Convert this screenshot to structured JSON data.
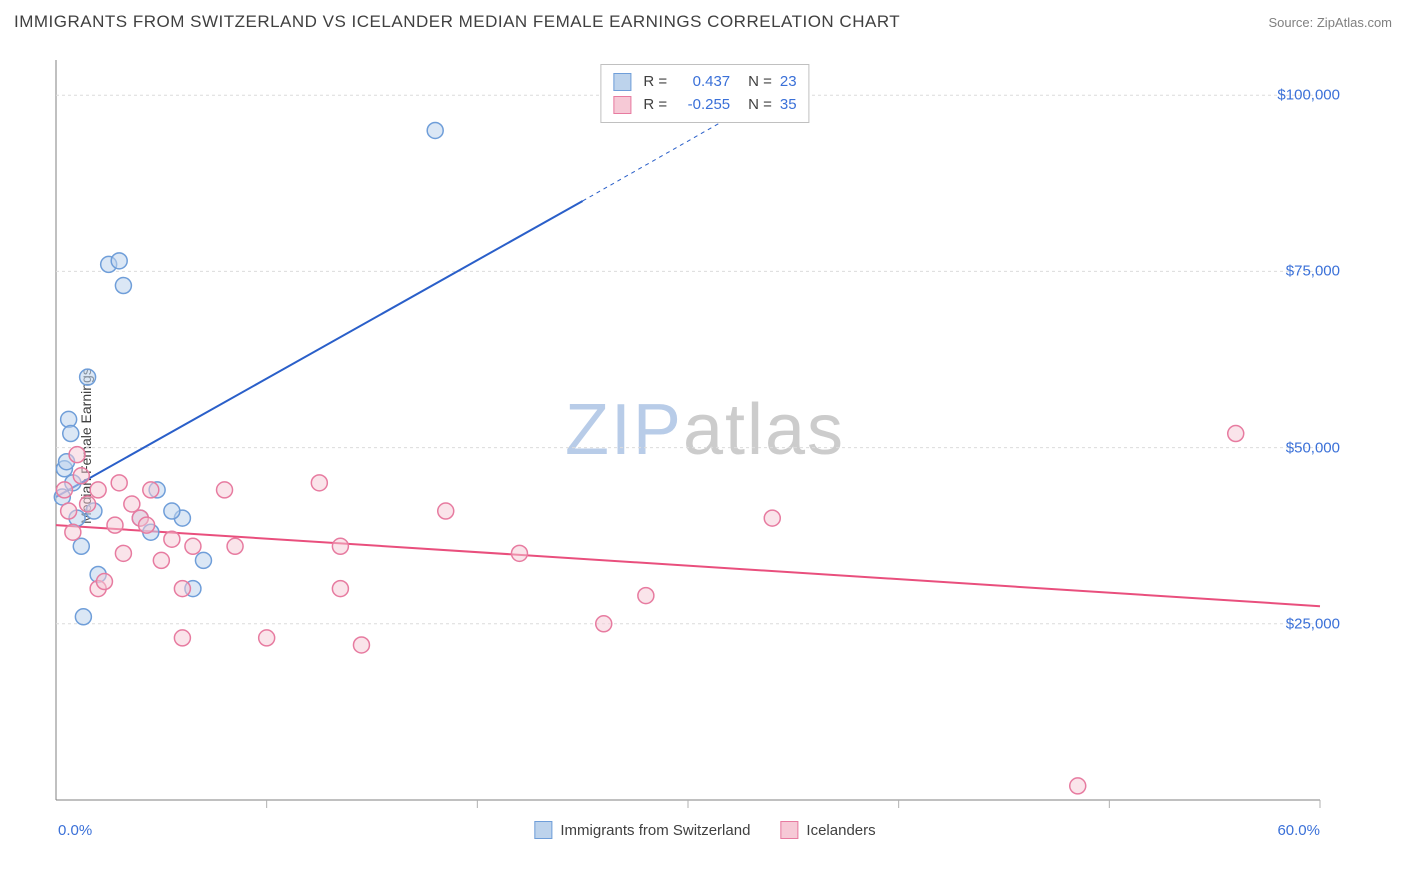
{
  "title": "IMMIGRANTS FROM SWITZERLAND VS ICELANDER MEDIAN FEMALE EARNINGS CORRELATION CHART",
  "source": "Source: ZipAtlas.com",
  "y_axis_label": "Median Female Earnings",
  "watermark": {
    "part1": "ZIP",
    "part2": "atlas"
  },
  "chart": {
    "type": "scatter",
    "xlim": [
      0,
      60
    ],
    "ylim": [
      0,
      105000
    ],
    "x_tick_positions": [
      10,
      20,
      30,
      40,
      50,
      60
    ],
    "y_grid": [
      25000,
      50000,
      75000,
      100000
    ],
    "y_tick_labels": [
      "$25,000",
      "$50,000",
      "$75,000",
      "$100,000"
    ],
    "x_min_label": "0.0%",
    "x_max_label": "60.0%",
    "background_color": "#ffffff",
    "axis_color": "#808080",
    "grid_color": "#dcdcdc",
    "tick_color": "#b0b0b0",
    "marker_radius": 8,
    "marker_stroke_width": 1.5,
    "trend_line_width": 2,
    "series": [
      {
        "name": "Immigrants from Switzerland",
        "fill": "#bdd3ec",
        "stroke": "#6f9ed9",
        "fill_opacity": 0.55,
        "R": "0.437",
        "N": "23",
        "trend": {
          "x1": 0,
          "y1": 43000,
          "x2_solid": 25,
          "y2_solid": 85000,
          "x2": 35,
          "y2": 102000,
          "color": "#2a5fc9"
        },
        "points": [
          {
            "x": 0.3,
            "y": 43000
          },
          {
            "x": 0.4,
            "y": 47000
          },
          {
            "x": 0.5,
            "y": 48000
          },
          {
            "x": 0.6,
            "y": 54000
          },
          {
            "x": 0.7,
            "y": 52000
          },
          {
            "x": 0.8,
            "y": 45000
          },
          {
            "x": 1.0,
            "y": 40000
          },
          {
            "x": 1.2,
            "y": 36000
          },
          {
            "x": 1.3,
            "y": 26000
          },
          {
            "x": 1.8,
            "y": 41000
          },
          {
            "x": 2.0,
            "y": 32000
          },
          {
            "x": 1.5,
            "y": 60000
          },
          {
            "x": 2.5,
            "y": 76000
          },
          {
            "x": 3.0,
            "y": 76500
          },
          {
            "x": 3.2,
            "y": 73000
          },
          {
            "x": 4.0,
            "y": 40000
          },
          {
            "x": 4.5,
            "y": 38000
          },
          {
            "x": 4.8,
            "y": 44000
          },
          {
            "x": 6.5,
            "y": 30000
          },
          {
            "x": 6.0,
            "y": 40000
          },
          {
            "x": 5.5,
            "y": 41000
          },
          {
            "x": 7.0,
            "y": 34000
          },
          {
            "x": 18.0,
            "y": 95000
          }
        ]
      },
      {
        "name": "Icelanders",
        "fill": "#f6c9d6",
        "stroke": "#e77ba0",
        "fill_opacity": 0.5,
        "R": "-0.255",
        "N": "35",
        "trend": {
          "x1": 0,
          "y1": 39000,
          "x2_solid": 60,
          "y2_solid": 27500,
          "x2": 60,
          "y2": 27500,
          "color": "#e94f7d"
        },
        "points": [
          {
            "x": 0.4,
            "y": 44000
          },
          {
            "x": 0.6,
            "y": 41000
          },
          {
            "x": 0.8,
            "y": 38000
          },
          {
            "x": 1.0,
            "y": 49000
          },
          {
            "x": 1.2,
            "y": 46000
          },
          {
            "x": 1.5,
            "y": 42000
          },
          {
            "x": 2.0,
            "y": 44000
          },
          {
            "x": 2.0,
            "y": 30000
          },
          {
            "x": 2.3,
            "y": 31000
          },
          {
            "x": 2.8,
            "y": 39000
          },
          {
            "x": 3.0,
            "y": 45000
          },
          {
            "x": 3.2,
            "y": 35000
          },
          {
            "x": 3.6,
            "y": 42000
          },
          {
            "x": 4.0,
            "y": 40000
          },
          {
            "x": 4.3,
            "y": 39000
          },
          {
            "x": 4.5,
            "y": 44000
          },
          {
            "x": 5.0,
            "y": 34000
          },
          {
            "x": 5.5,
            "y": 37000
          },
          {
            "x": 6.0,
            "y": 30000
          },
          {
            "x": 6.0,
            "y": 23000
          },
          {
            "x": 6.5,
            "y": 36000
          },
          {
            "x": 8.0,
            "y": 44000
          },
          {
            "x": 8.5,
            "y": 36000
          },
          {
            "x": 10.0,
            "y": 23000
          },
          {
            "x": 12.5,
            "y": 45000
          },
          {
            "x": 13.5,
            "y": 36000
          },
          {
            "x": 13.5,
            "y": 30000
          },
          {
            "x": 14.5,
            "y": 22000
          },
          {
            "x": 18.5,
            "y": 41000
          },
          {
            "x": 22.0,
            "y": 35000
          },
          {
            "x": 26.0,
            "y": 25000
          },
          {
            "x": 28.0,
            "y": 29000
          },
          {
            "x": 34.0,
            "y": 40000
          },
          {
            "x": 48.5,
            "y": 2000
          },
          {
            "x": 56.0,
            "y": 52000
          }
        ]
      }
    ]
  },
  "legend_bottom": {
    "series1_label": "Immigrants from Switzerland",
    "series2_label": "Icelanders"
  },
  "legend_top_labels": {
    "R": "R =",
    "N": "N ="
  }
}
